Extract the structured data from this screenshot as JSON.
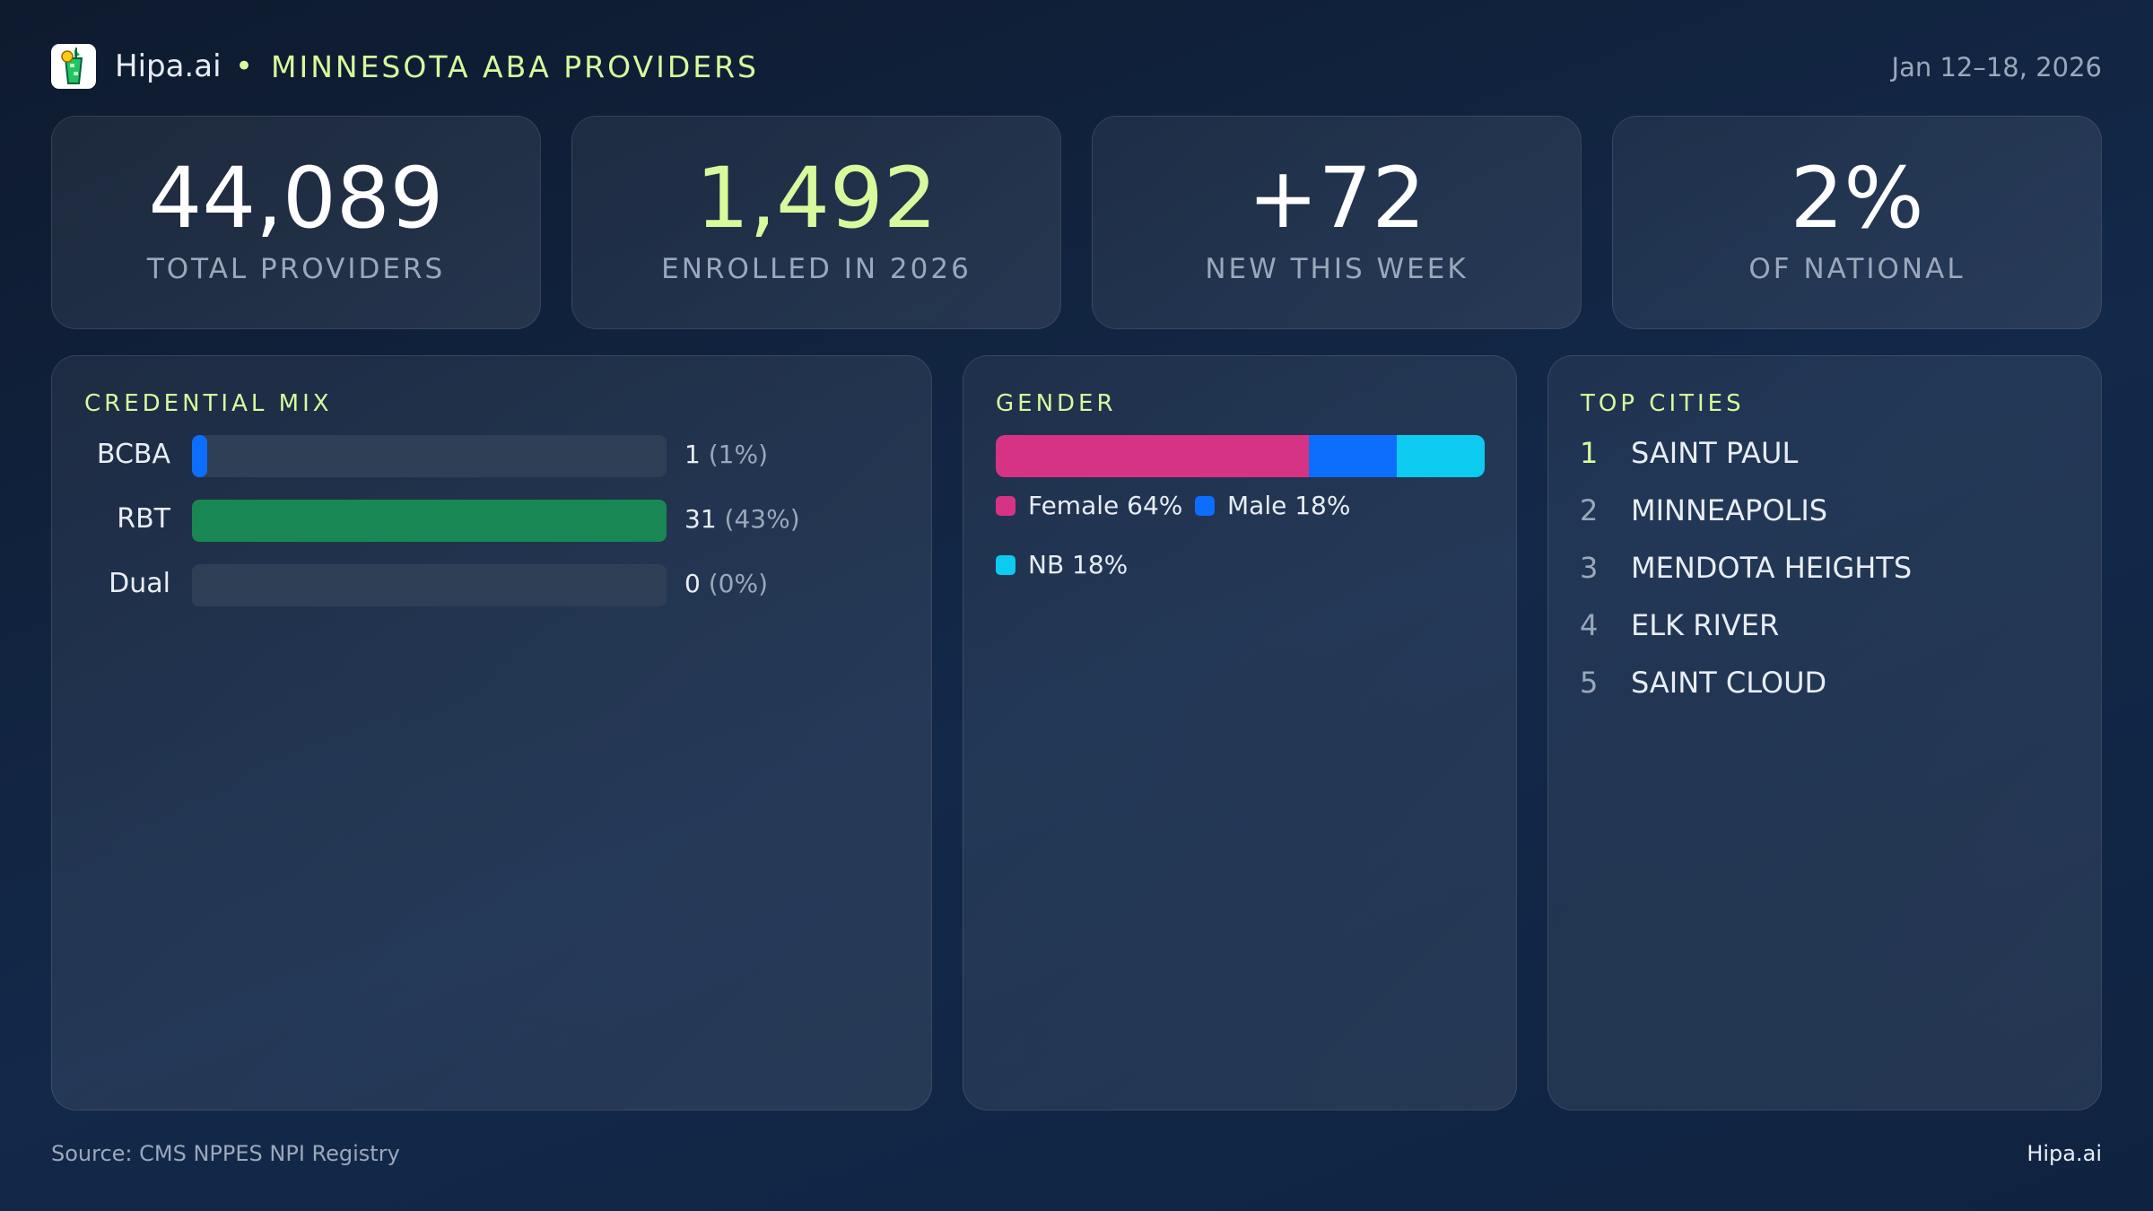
{
  "header": {
    "brand": "Hipa.ai",
    "separator": "•",
    "title": "MINNESOTA ABA PROVIDERS",
    "date_range": "Jan 12–18, 2026",
    "logo_icon": "mojito-glass-icon"
  },
  "kpis": [
    {
      "value": "44,089",
      "label": "TOTAL PROVIDERS",
      "color": "#ffffff"
    },
    {
      "value": "1,492",
      "label": "ENROLLED IN 2026",
      "color": "#d9f99d"
    },
    {
      "value": "+72",
      "label": "NEW THIS WEEK",
      "color": "#ffffff"
    },
    {
      "value": "2%",
      "label": "OF NATIONAL",
      "color": "#ffffff"
    }
  ],
  "credential": {
    "title": "CREDENTIAL MIX",
    "rows": [
      {
        "label": "BCBA",
        "count": "1",
        "pct": "(1%)",
        "value": 1,
        "color": "#0d6efd"
      },
      {
        "label": "RBT",
        "count": "31",
        "pct": "(43%)",
        "value": 31,
        "color": "#198754"
      },
      {
        "label": "Dual",
        "count": "0",
        "pct": "(0%)",
        "value": 0,
        "color": "#0d6efd"
      }
    ]
  },
  "gender": {
    "title": "GENDER",
    "segments": [
      {
        "label": "Female 64%",
        "value": 64,
        "color": "#d63384"
      },
      {
        "label": "Male 18%",
        "value": 18,
        "color": "#0d6efd"
      },
      {
        "label": "NB 18%",
        "value": 18,
        "color": "#0dcaf0"
      }
    ]
  },
  "cities": {
    "title": "TOP CITIES",
    "items": [
      {
        "rank": "1",
        "name": "SAINT PAUL"
      },
      {
        "rank": "2",
        "name": "MINNEAPOLIS"
      },
      {
        "rank": "3",
        "name": "MENDOTA HEIGHTS"
      },
      {
        "rank": "4",
        "name": "ELK RIVER"
      },
      {
        "rank": "5",
        "name": "SAINT CLOUD"
      }
    ]
  },
  "footer": {
    "source": "Source: CMS NPPES NPI Registry",
    "brand": "Hipa.ai"
  }
}
